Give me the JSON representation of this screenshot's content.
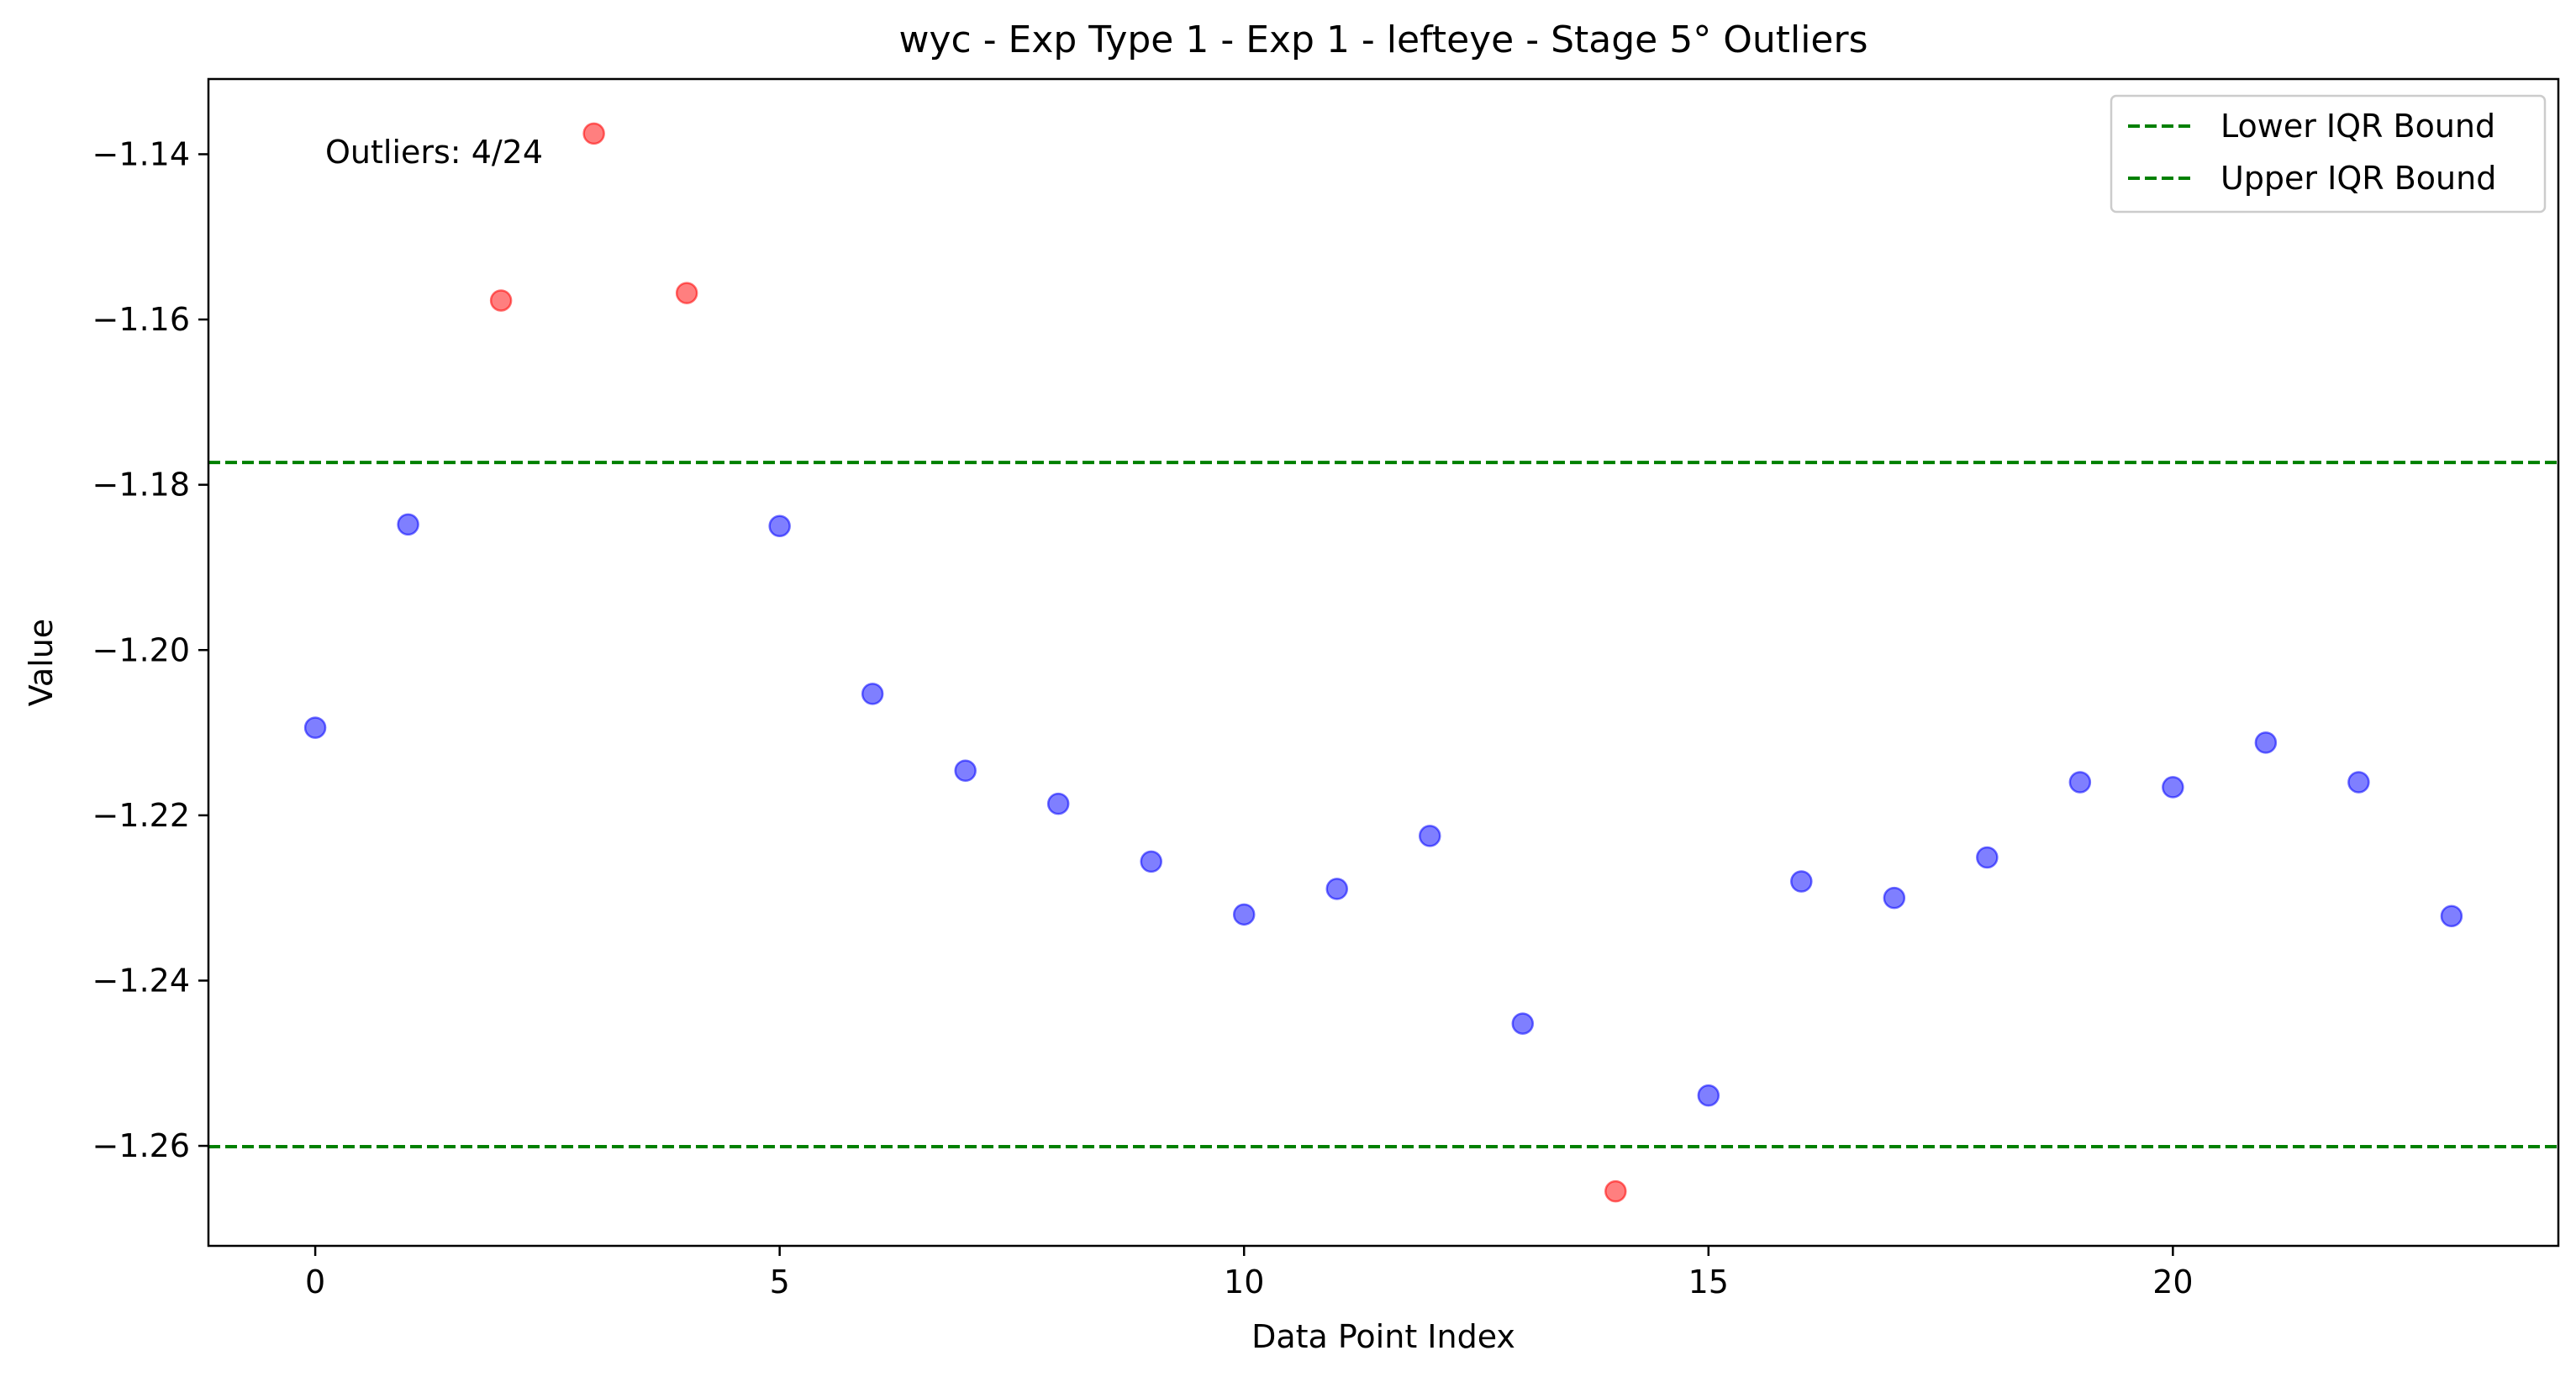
{
  "chart_data": {
    "type": "scatter",
    "title": "wyc - Exp Type 1 - Exp 1 - lefteye - Stage 5° Outliers",
    "xlabel": "Data Point Index",
    "ylabel": "Value",
    "xlim": [
      -1.15,
      24.15
    ],
    "ylim": [
      -1.2721,
      -1.1309
    ],
    "x_ticks": [
      0,
      5,
      10,
      15,
      20
    ],
    "y_ticks": [
      -1.14,
      -1.16,
      -1.18,
      -1.2,
      -1.22,
      -1.24,
      -1.26
    ],
    "x_tick_labels": [
      "0",
      "5",
      "10",
      "15",
      "20"
    ],
    "y_tick_labels": [
      "−1.14",
      "−1.16",
      "−1.18",
      "−1.20",
      "−1.22",
      "−1.24",
      "−1.26"
    ],
    "grid": false,
    "legend_position": "top-right",
    "annotation": "Outliers: 4/24",
    "lines": [
      {
        "name": "Lower IQR Bound",
        "y": -1.1773,
        "color": "#008000",
        "style": "dashed"
      },
      {
        "name": "Upper IQR Bound",
        "y": -1.2601,
        "color": "#008000",
        "style": "dashed"
      }
    ],
    "colors": {
      "normal": "#0000ff",
      "outlier": "#ff0000"
    },
    "points": [
      {
        "x": 0,
        "y": -1.2094,
        "outlier": false
      },
      {
        "x": 1,
        "y": -1.1848,
        "outlier": false
      },
      {
        "x": 2,
        "y": -1.1577,
        "outlier": true
      },
      {
        "x": 3,
        "y": -1.1375,
        "outlier": true
      },
      {
        "x": 4,
        "y": -1.1568,
        "outlier": true
      },
      {
        "x": 5,
        "y": -1.185,
        "outlier": false
      },
      {
        "x": 6,
        "y": -1.2053,
        "outlier": false
      },
      {
        "x": 7,
        "y": -1.2146,
        "outlier": false
      },
      {
        "x": 8,
        "y": -1.2186,
        "outlier": false
      },
      {
        "x": 9,
        "y": -1.2256,
        "outlier": false
      },
      {
        "x": 10,
        "y": -1.232,
        "outlier": false
      },
      {
        "x": 11,
        "y": -1.2289,
        "outlier": false
      },
      {
        "x": 12,
        "y": -1.2225,
        "outlier": false
      },
      {
        "x": 13,
        "y": -1.2452,
        "outlier": false
      },
      {
        "x": 14,
        "y": -1.2655,
        "outlier": true
      },
      {
        "x": 15,
        "y": -1.2539,
        "outlier": false
      },
      {
        "x": 16,
        "y": -1.228,
        "outlier": false
      },
      {
        "x": 17,
        "y": -1.23,
        "outlier": false
      },
      {
        "x": 18,
        "y": -1.2251,
        "outlier": false
      },
      {
        "x": 19,
        "y": -1.216,
        "outlier": false
      },
      {
        "x": 20,
        "y": -1.2166,
        "outlier": false
      },
      {
        "x": 21,
        "y": -1.2112,
        "outlier": false
      },
      {
        "x": 22,
        "y": -1.216,
        "outlier": false
      },
      {
        "x": 23,
        "y": -1.2322,
        "outlier": false
      }
    ]
  }
}
